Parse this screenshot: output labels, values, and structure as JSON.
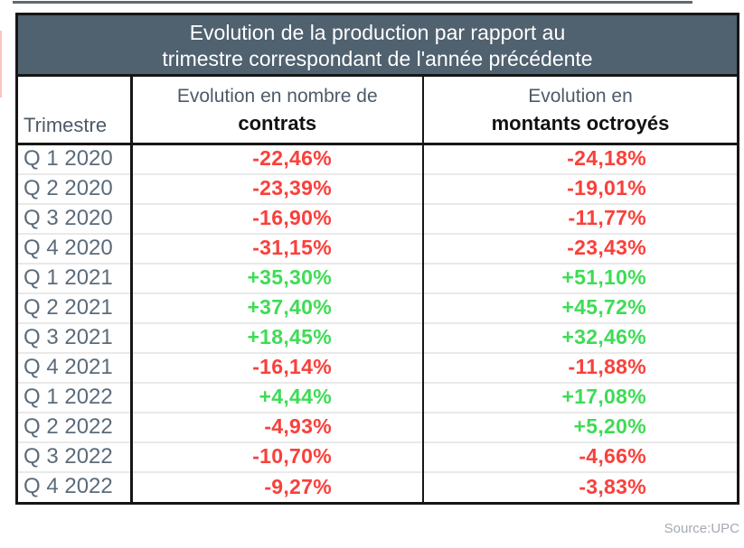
{
  "table": {
    "title_line1": "Evolution de la production par rapport au",
    "title_line2": "trimestre correspondant de l'année précédente",
    "columns": [
      {
        "label": "Trimestre"
      },
      {
        "label_top": "Evolution en nombre de",
        "label_bold": "contrats"
      },
      {
        "label_top": "Evolution en",
        "label_bold": "montants octroyés"
      }
    ],
    "rows": [
      {
        "quarter": "Q 1 2020",
        "contrats": "-22,46%",
        "montants": "-24,18%"
      },
      {
        "quarter": "Q 2 2020",
        "contrats": "-23,39%",
        "montants": "-19,01%"
      },
      {
        "quarter": "Q 3 2020",
        "contrats": "-16,90%",
        "montants": "-11,77%"
      },
      {
        "quarter": "Q 4 2020",
        "contrats": "-31,15%",
        "montants": "-23,43%"
      },
      {
        "quarter": "Q 1 2021",
        "contrats": "+35,30%",
        "montants": "+51,10%"
      },
      {
        "quarter": "Q 2 2021",
        "contrats": "+37,40%",
        "montants": "+45,72%"
      },
      {
        "quarter": "Q 3 2021",
        "contrats": "+18,45%",
        "montants": "+32,46%"
      },
      {
        "quarter": "Q 4 2021",
        "contrats": "-16,14%",
        "montants": "-11,88%"
      },
      {
        "quarter": "Q 1 2022",
        "contrats": "+4,44%",
        "montants": "+17,08%"
      },
      {
        "quarter": "Q 2 2022",
        "contrats": "-4,93%",
        "montants": "+5,20%"
      },
      {
        "quarter": "Q 3 2022",
        "contrats": "-10,70%",
        "montants": "-4,66%"
      },
      {
        "quarter": "Q 4 2022",
        "contrats": "-9,27%",
        "montants": "-3,83%"
      }
    ]
  },
  "source_label": "Source:UPC",
  "colors": {
    "positive": "#3edc55",
    "negative": "#f9403b",
    "title_bg": "#50616f",
    "quarter_text": "#5b6b7a"
  },
  "chart_data": {
    "type": "table",
    "title": "Evolution de la production par rapport au trimestre correspondant de l'année précédente",
    "columns": [
      "Trimestre",
      "Evolution en nombre de contrats",
      "Evolution en montants octroyés"
    ],
    "units": "%",
    "rows": [
      [
        "Q 1 2020",
        -22.46,
        -24.18
      ],
      [
        "Q 2 2020",
        -23.39,
        -19.01
      ],
      [
        "Q 3 2020",
        -16.9,
        -11.77
      ],
      [
        "Q 4 2020",
        -31.15,
        -23.43
      ],
      [
        "Q 1 2021",
        35.3,
        51.1
      ],
      [
        "Q 2 2021",
        37.4,
        45.72
      ],
      [
        "Q 3 2021",
        18.45,
        32.46
      ],
      [
        "Q 4 2021",
        -16.14,
        -11.88
      ],
      [
        "Q 1 2022",
        4.44,
        17.08
      ],
      [
        "Q 2 2022",
        -4.93,
        5.2
      ],
      [
        "Q 3 2022",
        -10.7,
        -4.66
      ],
      [
        "Q 4 2022",
        -9.27,
        -3.83
      ]
    ],
    "source": "Source:UPC",
    "value_color_rule": "negative=red, positive=green"
  }
}
